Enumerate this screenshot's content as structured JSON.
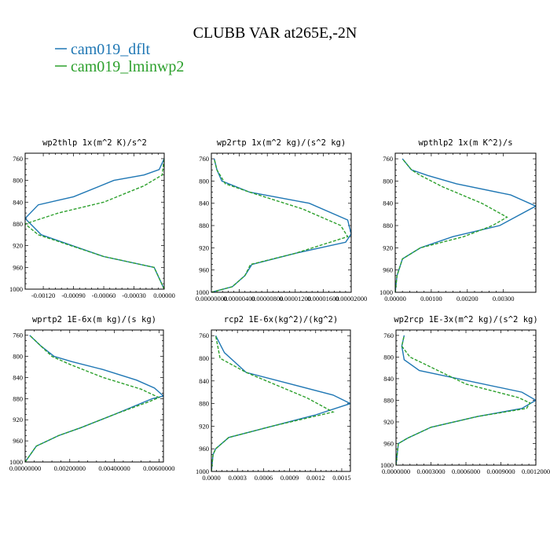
{
  "figure": {
    "title": "CLUBB VAR at265E,-2N"
  },
  "legend": [
    {
      "label": "cam019_dflt",
      "color": "#1f77b4"
    },
    {
      "label": "cam019_lminwp2",
      "color": "#2ca02c"
    }
  ],
  "chart_data": [
    {
      "type": "line",
      "title": "wp2thlp   1x(m^2 K)/s^2",
      "xlim": [
        -0.00138,
        0.0
      ],
      "ylim": [
        1000,
        750
      ],
      "xticks": [
        -0.0012,
        -0.0009,
        -0.0006,
        -0.0003,
        0.0
      ],
      "xtick_labels": [
        "-0.00120",
        "-0.00090",
        "-0.00060",
        "-0.00030",
        "0.00000"
      ],
      "yticks": [
        760,
        800,
        840,
        880,
        920,
        960,
        1000
      ],
      "ytick_labels": [
        "760",
        "800",
        "840",
        "880",
        "920",
        "960",
        "1000"
      ],
      "series": [
        {
          "name": "cam019_dflt",
          "color": "#1f77b4",
          "dash": "",
          "x": [
            0.0,
            -5e-05,
            -0.0001,
            -0.0006,
            -0.00122,
            -0.00138,
            -0.00125,
            -0.0009,
            -0.0005,
            -0.0002,
            -5e-05,
            0.0
          ],
          "y": [
            1000,
            980,
            960,
            940,
            900,
            870,
            845,
            830,
            800,
            790,
            780,
            760
          ]
        },
        {
          "name": "cam019_lminwp2",
          "color": "#2ca02c",
          "dash": "4,2",
          "x": [
            0.0,
            -5e-05,
            -0.0001,
            -0.0006,
            -0.00125,
            -0.00138,
            -0.00105,
            -0.0006,
            -0.0002,
            -2e-05,
            0.0
          ],
          "y": [
            1000,
            980,
            960,
            940,
            900,
            880,
            860,
            840,
            810,
            790,
            760
          ]
        }
      ]
    },
    {
      "type": "line",
      "title": "wp2rtp   1x(m^2 kg)/(s^2 kg)",
      "xlim": [
        0.0,
        2e-05
      ],
      "ylim": [
        1000,
        750
      ],
      "xticks": [
        0.0,
        4e-06,
        8e-06,
        1.2e-05,
        1.6e-05,
        2e-05
      ],
      "xtick_labels": [
        "0.00000000",
        "0.00000400",
        "0.00000800",
        "0.00001200",
        "0.00001600",
        "0.00002000"
      ],
      "yticks": [
        760,
        800,
        840,
        880,
        920,
        960,
        1000
      ],
      "ytick_labels": [
        "760",
        "800",
        "840",
        "880",
        "920",
        "960",
        "1000"
      ],
      "series": [
        {
          "name": "cam019_dflt",
          "color": "#1f77b4",
          "dash": "",
          "x": [
            0.0,
            3e-06,
            4.8e-06,
            5.8e-06,
            1.2e-05,
            1.92e-05,
            2e-05,
            1.95e-05,
            1.4e-05,
            5.5e-06,
            1.5e-06,
            8e-07,
            4e-07
          ],
          "y": [
            1000,
            990,
            970,
            950,
            930,
            910,
            895,
            870,
            840,
            820,
            800,
            780,
            760
          ]
        },
        {
          "name": "cam019_lminwp2",
          "color": "#2ca02c",
          "dash": "4,2",
          "x": [
            0.0,
            3e-06,
            4.8e-06,
            5.6e-06,
            1.2e-05,
            1.95e-05,
            1.85e-05,
            1.3e-05,
            5.5e-06,
            2e-06,
            8e-07,
            4e-07
          ],
          "y": [
            1000,
            990,
            970,
            950,
            930,
            900,
            880,
            850,
            820,
            805,
            780,
            760
          ]
        }
      ]
    },
    {
      "type": "line",
      "title": "wpthlp2   1x(m K^2)/s",
      "xlim": [
        0.0,
        0.0039
      ],
      "ylim": [
        1000,
        750
      ],
      "xticks": [
        0.0,
        0.001,
        0.002,
        0.003
      ],
      "xtick_labels": [
        "0.00000",
        "0.00100",
        "0.00200",
        "0.00300"
      ],
      "yticks": [
        760,
        800,
        840,
        880,
        920,
        960,
        1000
      ],
      "ytick_labels": [
        "760",
        "800",
        "840",
        "880",
        "920",
        "960",
        "1000"
      ],
      "series": [
        {
          "name": "cam019_dflt",
          "color": "#1f77b4",
          "dash": "",
          "x": [
            0.0,
            5e-05,
            0.0002,
            0.0007,
            0.0016,
            0.0029,
            0.0039,
            0.0032,
            0.0017,
            0.0009,
            0.00045,
            0.0002
          ],
          "y": [
            1000,
            970,
            940,
            920,
            900,
            880,
            845,
            825,
            805,
            790,
            780,
            760
          ]
        },
        {
          "name": "cam019_lminwp2",
          "color": "#2ca02c",
          "dash": "4,2",
          "x": [
            0.0,
            5e-05,
            0.0002,
            0.0007,
            0.0019,
            0.0027,
            0.0031,
            0.0024,
            0.0013,
            0.0007,
            0.00045,
            0.0002
          ],
          "y": [
            1000,
            970,
            940,
            920,
            900,
            880,
            865,
            840,
            810,
            790,
            780,
            760
          ]
        }
      ]
    },
    {
      "type": "line",
      "title": "wprtp2   1E-6x(m kg)/(s kg)",
      "xlim": [
        0.0,
        0.0062
      ],
      "ylim": [
        1000,
        750
      ],
      "xticks": [
        0.0,
        0.002,
        0.004,
        0.006
      ],
      "xtick_labels": [
        "0.00000000",
        "0.00200000",
        "0.00400000",
        "0.00600000"
      ],
      "yticks": [
        760,
        800,
        840,
        880,
        920,
        960,
        1000
      ],
      "ytick_labels": [
        "760",
        "800",
        "840",
        "880",
        "920",
        "960",
        "1000"
      ],
      "series": [
        {
          "name": "cam019_dflt",
          "color": "#1f77b4",
          "dash": "",
          "x": [
            0.0,
            0.0005,
            0.001,
            0.0015,
            0.0025,
            0.004,
            0.0057,
            0.0062,
            0.0058,
            0.005,
            0.0035,
            0.0021,
            0.0013,
            0.0007,
            0.0002
          ],
          "y": [
            1000,
            970,
            960,
            950,
            935,
            910,
            880,
            875,
            860,
            845,
            825,
            810,
            800,
            780,
            760
          ]
        },
        {
          "name": "cam019_lminwp2",
          "color": "#2ca02c",
          "dash": "4,2",
          "x": [
            0.0,
            0.0005,
            0.001,
            0.0015,
            0.0025,
            0.004,
            0.0056,
            0.006,
            0.0052,
            0.0035,
            0.002,
            0.0012,
            0.0007,
            0.0002
          ],
          "y": [
            1000,
            970,
            960,
            950,
            935,
            910,
            885,
            878,
            862,
            840,
            815,
            800,
            780,
            760
          ]
        }
      ]
    },
    {
      "type": "line",
      "title": "rcp2   1E-6x(kg^2)/(kg^2)",
      "xlim": [
        0.0,
        0.0016
      ],
      "ylim": [
        1000,
        750
      ],
      "xticks": [
        0.0,
        0.0003,
        0.0006,
        0.0009,
        0.0012,
        0.0015
      ],
      "xtick_labels": [
        "0.0000",
        "0.0003",
        "0.0006",
        "0.0009",
        "0.0012",
        "0.0015"
      ],
      "yticks": [
        760,
        800,
        840,
        880,
        920,
        960,
        1000
      ],
      "ytick_labels": [
        "760",
        "800",
        "840",
        "880",
        "920",
        "960",
        "1000"
      ],
      "series": [
        {
          "name": "cam019_dflt",
          "color": "#1f77b4",
          "dash": "",
          "x": [
            0.0,
            2e-05,
            5e-05,
            0.0002,
            0.0007,
            0.0012,
            0.0016,
            0.0014,
            0.0004,
            0.00015,
            5e-05
          ],
          "y": [
            1000,
            970,
            960,
            940,
            920,
            900,
            880,
            865,
            825,
            790,
            760
          ]
        },
        {
          "name": "cam019_lminwp2",
          "color": "#2ca02c",
          "dash": "4,2",
          "x": [
            0.0,
            2e-05,
            5e-05,
            0.0002,
            0.0007,
            0.0014,
            0.0011,
            0.0004,
            0.0001,
            5e-05
          ],
          "y": [
            1000,
            970,
            960,
            940,
            920,
            895,
            870,
            825,
            800,
            760
          ]
        }
      ]
    },
    {
      "type": "line",
      "title": "wp2rcp   1E-3x(m^2 kg)/(s^2 kg)",
      "xlim": [
        0.0,
        0.0012
      ],
      "ylim": [
        1000,
        750
      ],
      "xticks": [
        0.0,
        0.0003,
        0.0006,
        0.0009,
        0.0012
      ],
      "xtick_labels": [
        "0.0000000",
        "0.0003000",
        "0.0006000",
        "0.0009000",
        "0.0012000"
      ],
      "yticks": [
        760,
        800,
        840,
        880,
        920,
        960,
        1000
      ],
      "ytick_labels": [
        "760",
        "800",
        "840",
        "880",
        "920",
        "960",
        "1000"
      ],
      "series": [
        {
          "name": "cam019_dflt",
          "color": "#1f77b4",
          "dash": "",
          "x": [
            0.0,
            2e-05,
            0.0001,
            0.0003,
            0.0007,
            0.00108,
            0.0012,
            0.00108,
            0.0002,
            7e-05,
            5e-05,
            7e-05
          ],
          "y": [
            1000,
            960,
            950,
            930,
            910,
            895,
            880,
            865,
            825,
            805,
            780,
            760
          ]
        },
        {
          "name": "cam019_lminwp2",
          "color": "#2ca02c",
          "dash": "4,2",
          "x": [
            0.0,
            2e-05,
            0.0001,
            0.0003,
            0.0007,
            0.00112,
            0.00115,
            0.00105,
            0.0006,
            0.00012,
            5e-05,
            7e-05
          ],
          "y": [
            1000,
            960,
            950,
            930,
            910,
            895,
            885,
            875,
            850,
            800,
            780,
            760
          ]
        }
      ]
    }
  ]
}
